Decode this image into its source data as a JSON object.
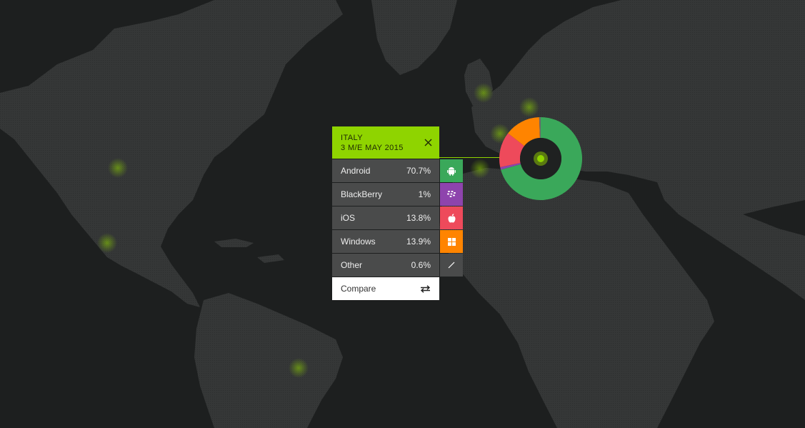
{
  "panel": {
    "country": "ITALY",
    "period": "3 M/E MAY 2015",
    "compare_label": "Compare",
    "rows": [
      {
        "name": "Android",
        "value": "70.7%",
        "icon": "android-icon",
        "color": "#3aa85a"
      },
      {
        "name": "BlackBerry",
        "value": "1%",
        "icon": "blackberry-icon",
        "color": "#8e44ad"
      },
      {
        "name": "iOS",
        "value": "13.8%",
        "icon": "apple-icon",
        "color": "#ee4a5b"
      },
      {
        "name": "Windows",
        "value": "13.9%",
        "icon": "windows-icon",
        "color": "#ff8400"
      },
      {
        "name": "Other",
        "value": "0.6%",
        "icon": "other-icon",
        "color": "#4a4b4b"
      }
    ]
  },
  "chart_data": {
    "type": "pie",
    "categories": [
      "Android",
      "BlackBerry",
      "iOS",
      "Windows",
      "Other"
    ],
    "values": [
      70.7,
      1,
      13.8,
      13.9,
      0.6
    ],
    "colors": [
      "#3aa85a",
      "#8e44ad",
      "#ee4a5b",
      "#ff8400",
      "#6a6a6a"
    ]
  },
  "colors": {
    "accent": "#8fd400",
    "background": "#1d1f1f",
    "land": "#323434"
  }
}
